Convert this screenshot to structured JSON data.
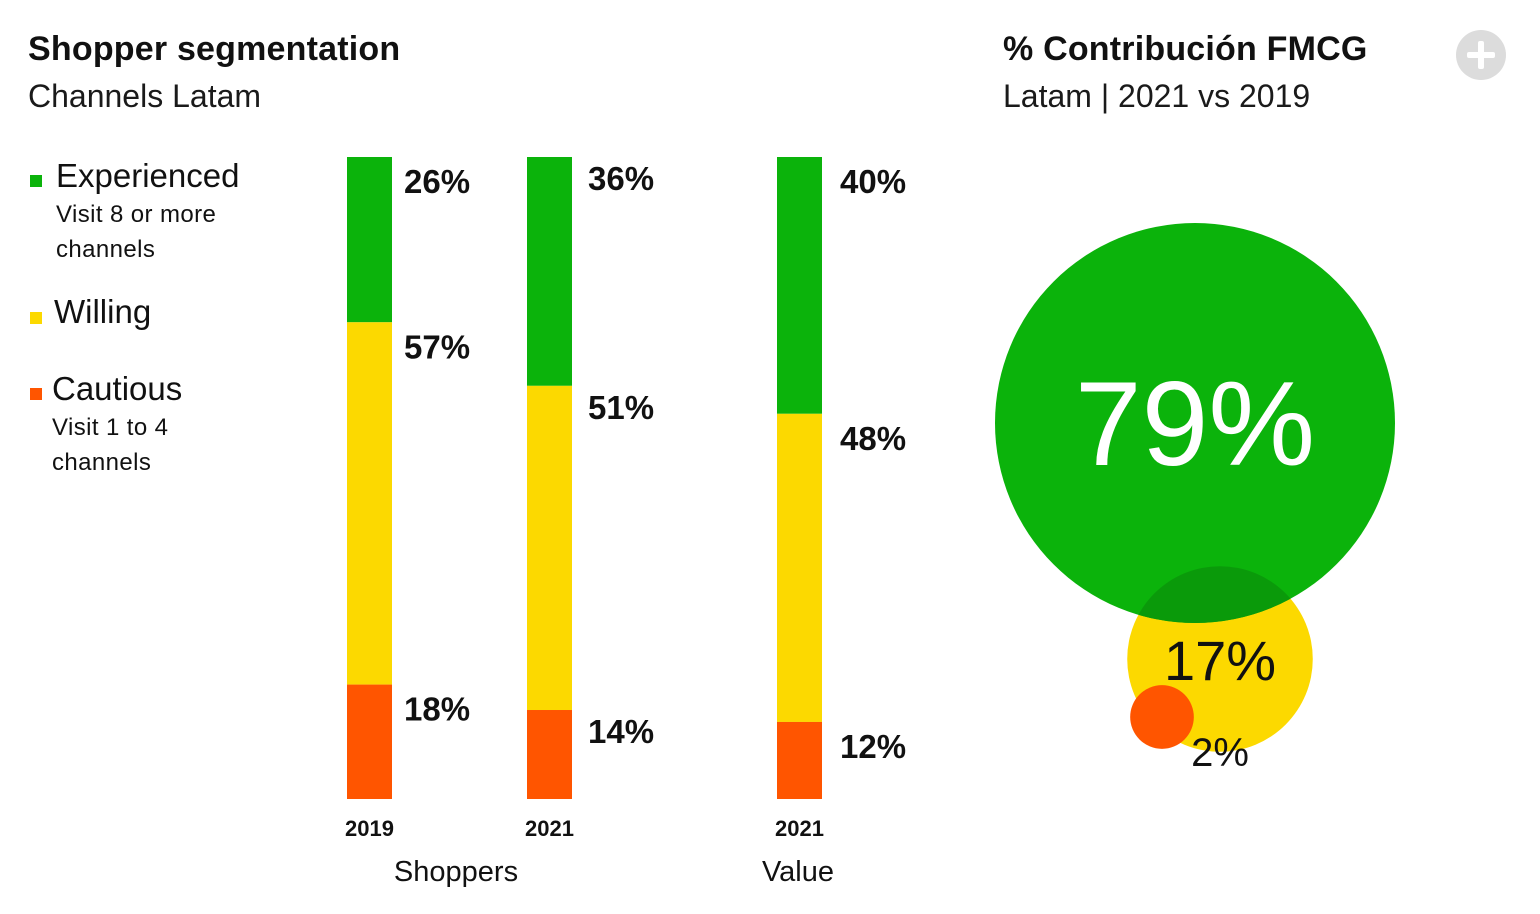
{
  "left_panel": {
    "title": "Shopper segmentation",
    "subtitle": "Channels Latam"
  },
  "right_panel": {
    "title": "% Contribución FMCG",
    "subtitle": "Latam | 2021 vs 2019"
  },
  "legend": [
    {
      "label": "Experienced",
      "description": "Visit 8 or more channels",
      "color": "#0bb30b"
    },
    {
      "label": "Willing",
      "description": "",
      "color": "#fcd900"
    },
    {
      "label": "Cautious",
      "description": "Visit 1 to 4 channels",
      "color": "#ff5500"
    }
  ],
  "icons": {
    "expand": "plus-circle-icon"
  },
  "colors": {
    "experienced": "#0bb30b",
    "willing": "#fcd900",
    "cautious": "#ff5500"
  },
  "chart_data": [
    {
      "type": "bar",
      "stacked": true,
      "groups": [
        {
          "label": "Shoppers",
          "categories": [
            "2019",
            "2021"
          ]
        },
        {
          "label": "Value",
          "categories": [
            "2021"
          ]
        }
      ],
      "categories": [
        "2019",
        "2021",
        "2021"
      ],
      "series": [
        {
          "name": "Experienced",
          "values": [
            26,
            36,
            40
          ],
          "labels": [
            "26%",
            "36%",
            "40%"
          ],
          "color": "#0bb30b"
        },
        {
          "name": "Willing",
          "values": [
            57,
            51,
            48
          ],
          "labels": [
            "57%",
            "51%",
            "48%"
          ],
          "color": "#fcd900"
        },
        {
          "name": "Cautious",
          "values": [
            18,
            14,
            12
          ],
          "labels": [
            "18%",
            "14%",
            "12%"
          ],
          "color": "#ff5500"
        }
      ],
      "ylim": [
        0,
        100
      ]
    },
    {
      "type": "bubble",
      "series": [
        {
          "name": "Experienced",
          "value": 79,
          "label": "79%",
          "color": "#0bb30b"
        },
        {
          "name": "Willing",
          "value": 17,
          "label": "17%",
          "color": "#fcd900"
        },
        {
          "name": "Cautious",
          "value": 2,
          "label": "2%",
          "color": "#ff5500"
        }
      ]
    }
  ]
}
